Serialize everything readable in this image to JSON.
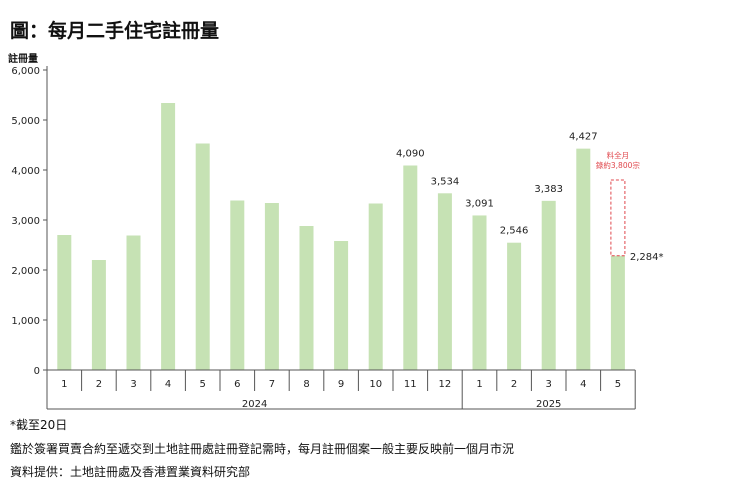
{
  "title": "圖：每月二手住宅註冊量",
  "chart_data": {
    "type": "bar",
    "ylabel": "註冊量",
    "ylim": [
      0,
      6000
    ],
    "yticks": [
      "0",
      "1,000",
      "2,000",
      "3,000",
      "4,000",
      "5,000",
      "6,000"
    ],
    "categories": [
      "1",
      "2",
      "3",
      "4",
      "5",
      "6",
      "7",
      "8",
      "9",
      "10",
      "11",
      "12",
      "1",
      "2",
      "3",
      "4",
      "5"
    ],
    "years": [
      {
        "label": "2024",
        "from": 0,
        "to": 11
      },
      {
        "label": "2025",
        "from": 12,
        "to": 16
      }
    ],
    "values": [
      2700,
      2200,
      2690,
      5340,
      4530,
      3390,
      3340,
      2880,
      2580,
      3330,
      4090,
      3534,
      3091,
      2546,
      3383,
      4427,
      2284
    ],
    "data_labels": [
      "",
      "",
      "",
      "",
      "",
      "",
      "",
      "",
      "",
      "",
      "4,090",
      "3,534",
      "3,091",
      "2,546",
      "3,383",
      "4,427",
      "2,284*"
    ],
    "bar_color": "#c6e2b4",
    "projection": {
      "index": 16,
      "value": 3800,
      "label_line1": "料全月",
      "label_line2": "錄約3,800宗",
      "color": "#e0474c"
    },
    "grid": false
  },
  "notes": {
    "n1": "*截至20日",
    "n2": "鑑於簽署買賣合約至遞交到土地註冊處註冊登記需時，每月註冊個案一般主要反映前一個月市況",
    "n3": "資料提供：土地註冊處及香港置業資料研究部"
  }
}
